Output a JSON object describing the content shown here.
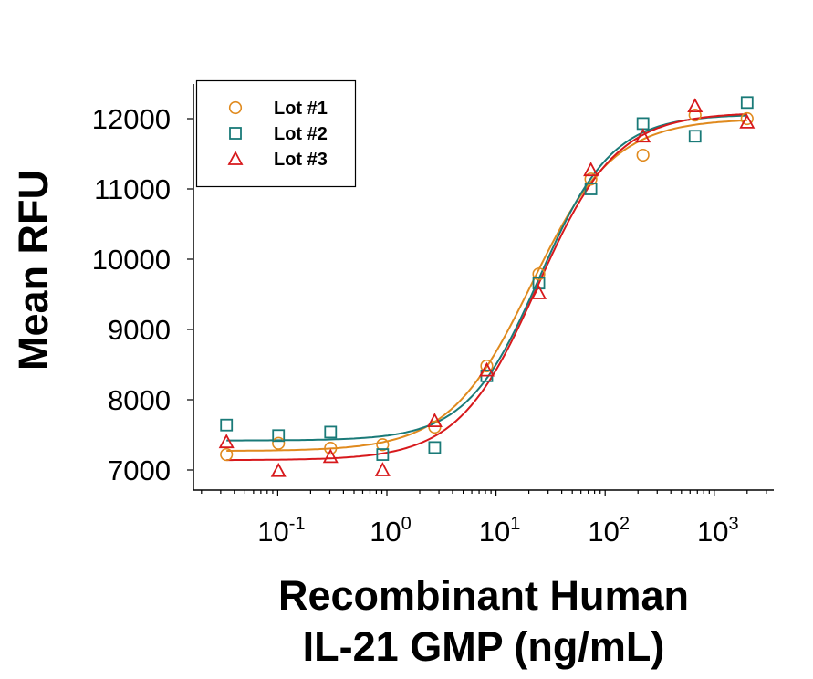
{
  "chart_data": {
    "type": "scatter",
    "title": "",
    "xlabel_lines": [
      "Recombinant Human",
      "IL-21 GMP (ng/mL)"
    ],
    "ylabel": "Mean RFU",
    "xscale": "log",
    "xlim": [
      0.02,
      4000
    ],
    "ylim": [
      6800,
      12500
    ],
    "grid": false,
    "legend_position": "top-left",
    "y_ticks": [
      {
        "value": 7000,
        "label": "7000"
      },
      {
        "value": 8000,
        "label": "8000"
      },
      {
        "value": 9000,
        "label": "9000"
      },
      {
        "value": 10000,
        "label": "10000"
      },
      {
        "value": 11000,
        "label": "11000"
      },
      {
        "value": 12000,
        "label": "12000"
      }
    ],
    "x_ticks": [
      {
        "value": 0.1,
        "base": "10",
        "exp": "-1"
      },
      {
        "value": 1,
        "base": "10",
        "exp": "0"
      },
      {
        "value": 10,
        "base": "10",
        "exp": "1"
      },
      {
        "value": 100,
        "base": "10",
        "exp": "2"
      },
      {
        "value": 1000,
        "base": "10",
        "exp": "3"
      }
    ],
    "x": [
      0.0339,
      0.1016,
      0.3048,
      0.9145,
      2.743,
      8.23,
      24.69,
      74.07,
      222.2,
      666.7,
      2000
    ],
    "series": [
      {
        "name": "Lot #1",
        "marker": "circle",
        "color": "#E08A1E",
        "values": [
          7220,
          7380,
          7310,
          7360,
          7610,
          8480,
          9790,
          11140,
          11480,
          12050,
          12000
        ],
        "fit": {
          "bottom": 7270,
          "top": 12000,
          "ec50": 21,
          "hill": 1.15
        }
      },
      {
        "name": "Lot #2",
        "marker": "square",
        "color": "#1A7A78",
        "values": [
          7640,
          7490,
          7540,
          7220,
          7320,
          8340,
          9660,
          11000,
          11930,
          11750,
          12230
        ],
        "fit": {
          "bottom": 7420,
          "top": 12060,
          "ec50": 25,
          "hill": 1.3
        }
      },
      {
        "name": "Lot #3",
        "marker": "triangle",
        "color": "#D7191C",
        "values": [
          7400,
          6990,
          7190,
          7000,
          7700,
          8420,
          9520,
          11270,
          11750,
          12180,
          11950
        ],
        "fit": {
          "bottom": 7140,
          "top": 12090,
          "ec50": 24,
          "hill": 1.2
        }
      }
    ]
  }
}
